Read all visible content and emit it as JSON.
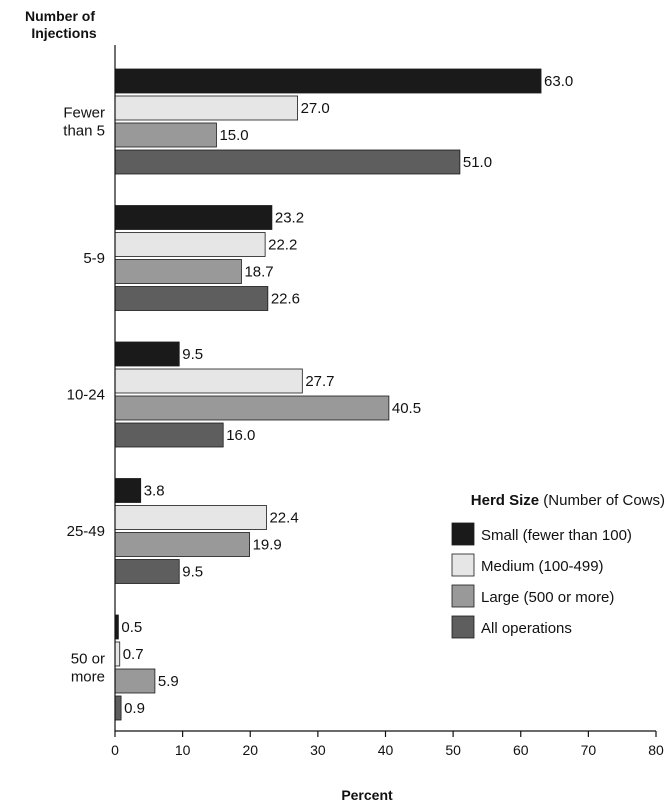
{
  "chart_data": {
    "type": "bar",
    "orientation": "horizontal",
    "ylabel_lines": [
      "Number of",
      "Injections"
    ],
    "xlabel": "Percent",
    "xlim": [
      0,
      80
    ],
    "xticks": [
      0,
      10,
      20,
      30,
      40,
      50,
      60,
      70,
      80
    ],
    "grid": false,
    "categories": [
      [
        "Fewer",
        "than 5"
      ],
      [
        "5-9"
      ],
      [
        "10-24"
      ],
      [
        "25-49"
      ],
      [
        "50 or",
        "more"
      ]
    ],
    "series": [
      {
        "name": "Small (fewer than 100)",
        "color": "#1a1a1a",
        "values": [
          63.0,
          23.2,
          9.5,
          3.8,
          0.5
        ]
      },
      {
        "name": "Medium (100-499)",
        "color": "#e6e6e6",
        "values": [
          27.0,
          22.2,
          27.7,
          22.4,
          0.7
        ]
      },
      {
        "name": "Large (500 or more)",
        "color": "#999999",
        "values": [
          15.0,
          18.7,
          40.5,
          19.9,
          5.9
        ]
      },
      {
        "name": "All operations",
        "color": "#5e5e5e",
        "values": [
          51.0,
          22.6,
          16.0,
          9.5,
          0.9
        ]
      }
    ],
    "legend": {
      "title_bold": "Herd Size",
      "title_rest": " (Number of Cows)",
      "placement": "right"
    },
    "value_format": "one-decimal"
  }
}
